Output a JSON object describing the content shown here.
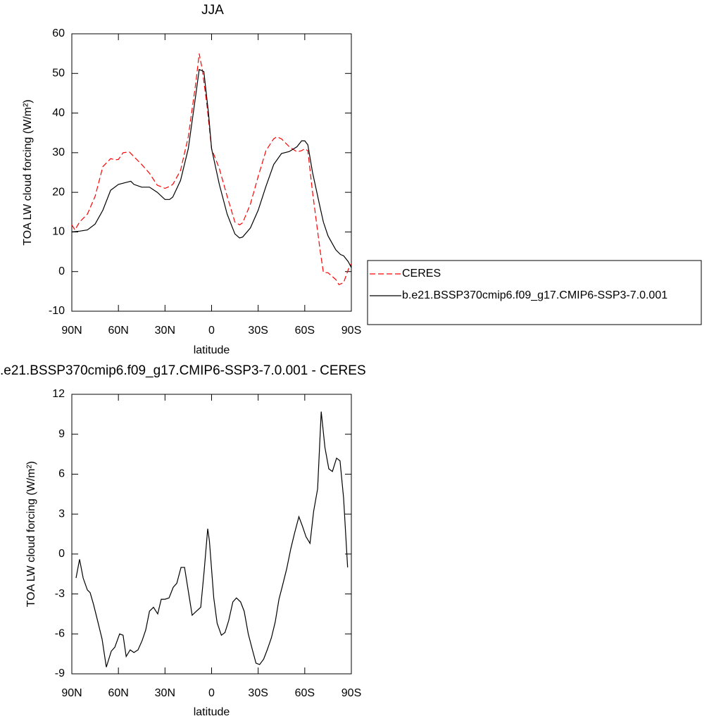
{
  "chart_data": [
    {
      "type": "line",
      "title": "JJA",
      "xlabel": "latitude",
      "ylabel": "TOA LW cloud forcing (W/m²)",
      "xlim": [
        90,
        -90
      ],
      "ylim": [
        -10,
        60
      ],
      "xticks": [
        {
          "value": 90,
          "label": "90N"
        },
        {
          "value": 60,
          "label": "60N"
        },
        {
          "value": 30,
          "label": "30N"
        },
        0,
        {
          "value": -30,
          "label": "30S"
        },
        {
          "value": -60,
          "label": "60S"
        },
        {
          "value": -90,
          "label": "90S"
        }
      ],
      "yticks": [
        -10,
        0,
        10,
        20,
        30,
        40,
        50,
        60
      ],
      "legend": "right",
      "series": [
        {
          "name": "CERES",
          "color": "#ff0000",
          "dash": true,
          "x": [
            90,
            88,
            85,
            80,
            75,
            70,
            65,
            62,
            60,
            57,
            53,
            50,
            45,
            40,
            35,
            30,
            27,
            25,
            20,
            15,
            10,
            8,
            6,
            3,
            0,
            -5,
            -10,
            -15,
            -18,
            -20,
            -25,
            -30,
            -35,
            -40,
            -42,
            -45,
            -50,
            -55,
            -58,
            -60,
            -62,
            -65,
            -70,
            -72,
            -75,
            -80,
            -82,
            -85,
            -88,
            -90
          ],
          "values": [
            11.8,
            10.5,
            12.5,
            14.5,
            19,
            26.5,
            28.5,
            28.2,
            28.3,
            30,
            30.2,
            29,
            27,
            24.8,
            21.8,
            21,
            21.5,
            22,
            25.5,
            34,
            48,
            55,
            51,
            42,
            31,
            26,
            19,
            12.5,
            11.8,
            12.3,
            17,
            24,
            30.5,
            33.5,
            34,
            33.5,
            31.5,
            30.2,
            30.5,
            31,
            30.5,
            20,
            5,
            -0.2,
            -0.3,
            -2,
            -3.3,
            -2.8,
            0.5,
            2
          ]
        },
        {
          "name": "b.e21.BSSP370cmip6.f09_g17.CMIP6-SSP3-7.0.001",
          "color": "#000000",
          "dash": false,
          "x": [
            90,
            85,
            80,
            75,
            70,
            65,
            60,
            55,
            52,
            50,
            45,
            40,
            35,
            30,
            27,
            25,
            20,
            15,
            10,
            8,
            5,
            2,
            0,
            -5,
            -10,
            -15,
            -18,
            -20,
            -25,
            -30,
            -35,
            -40,
            -45,
            -50,
            -55,
            -58,
            -60,
            -62,
            -65,
            -70,
            -72,
            -75,
            -80,
            -83,
            -85,
            -88,
            -90
          ],
          "values": [
            10,
            10.2,
            10.5,
            12,
            15.5,
            20.5,
            22,
            22.5,
            22.8,
            22,
            21.3,
            21.3,
            20,
            18.2,
            18.2,
            18.8,
            23,
            31,
            45,
            51,
            50.5,
            40,
            31,
            22,
            14.5,
            9.5,
            8.5,
            8.7,
            11,
            15.5,
            21.5,
            27,
            29.8,
            30.3,
            31.5,
            33,
            33,
            32,
            25,
            16,
            12.5,
            9,
            5.5,
            4.3,
            4,
            2.5,
            1
          ]
        }
      ]
    },
    {
      "type": "line",
      "title": ".e21.BSSP370cmip6.f09_g17.CMIP6-SSP3-7.0.001 - CERES",
      "xlabel": "latitude",
      "ylabel": "TOA LW cloud forcing (W/m²)",
      "xlim": [
        90,
        -90
      ],
      "ylim": [
        -9,
        12
      ],
      "xticks": [
        {
          "value": 90,
          "label": "90N"
        },
        {
          "value": 60,
          "label": "60N"
        },
        {
          "value": 30,
          "label": "30N"
        },
        0,
        {
          "value": -30,
          "label": "30S"
        },
        {
          "value": -60,
          "label": "60S"
        },
        {
          "value": -90,
          "label": "90S"
        }
      ],
      "yticks": [
        -9,
        -6,
        -3,
        0,
        3,
        6,
        9,
        12
      ],
      "series": [
        {
          "color": "#000000",
          "dash": false,
          "x": [
            87.3,
            85,
            82.7,
            80,
            78.2,
            76,
            73,
            70.5,
            67.8,
            64.6,
            62.3,
            59.2,
            57,
            55,
            52.4,
            50,
            47.4,
            44.7,
            42.4,
            40,
            37.4,
            34.7,
            32.4,
            30,
            27.4,
            24.7,
            22.4,
            19.7,
            17.4,
            14.7,
            12.5,
            9.8,
            7,
            4.8,
            2.5,
            1.4,
            -1.4,
            -3.6,
            -6.3,
            -8.6,
            -11,
            -13.7,
            -16,
            -18.7,
            -21,
            -23.6,
            -26.3,
            -28.6,
            -30.9,
            -33.5,
            -35.8,
            -38.5,
            -41,
            -43.4,
            -45.6,
            -48.4,
            -51,
            -53.5,
            -56.2,
            -58.5,
            -60.8,
            -63.4,
            -65.7,
            -68.3,
            -70.6,
            -73,
            -75.5,
            -77.8,
            -80.5,
            -82.7,
            -85,
            -87.6
          ],
          "values": [
            -1.8,
            -0.4,
            -1.8,
            -2.7,
            -2.9,
            -3.8,
            -5.2,
            -6.4,
            -8.5,
            -7.3,
            -7,
            -6,
            -6.1,
            -7.7,
            -7.2,
            -7.4,
            -7.2,
            -6.5,
            -5.7,
            -4.3,
            -4,
            -4.5,
            -3.4,
            -3.4,
            -3.3,
            -2.5,
            -2.2,
            -1,
            -1,
            -3,
            -4.6,
            -4.3,
            -4,
            -1.3,
            1.9,
            1,
            -3.3,
            -5.2,
            -6.1,
            -5.9,
            -5,
            -3.6,
            -3.3,
            -3.6,
            -4.3,
            -6,
            -7.2,
            -8.2,
            -8.3,
            -7.9,
            -7.2,
            -6.3,
            -5.1,
            -3.4,
            -2.4,
            -1.1,
            0.4,
            1.6,
            2.8,
            2.1,
            1.3,
            0.8,
            3.2,
            4.9,
            10.7,
            8,
            6.4,
            6.2,
            7.2,
            7,
            4.2,
            -1
          ]
        }
      ]
    }
  ]
}
